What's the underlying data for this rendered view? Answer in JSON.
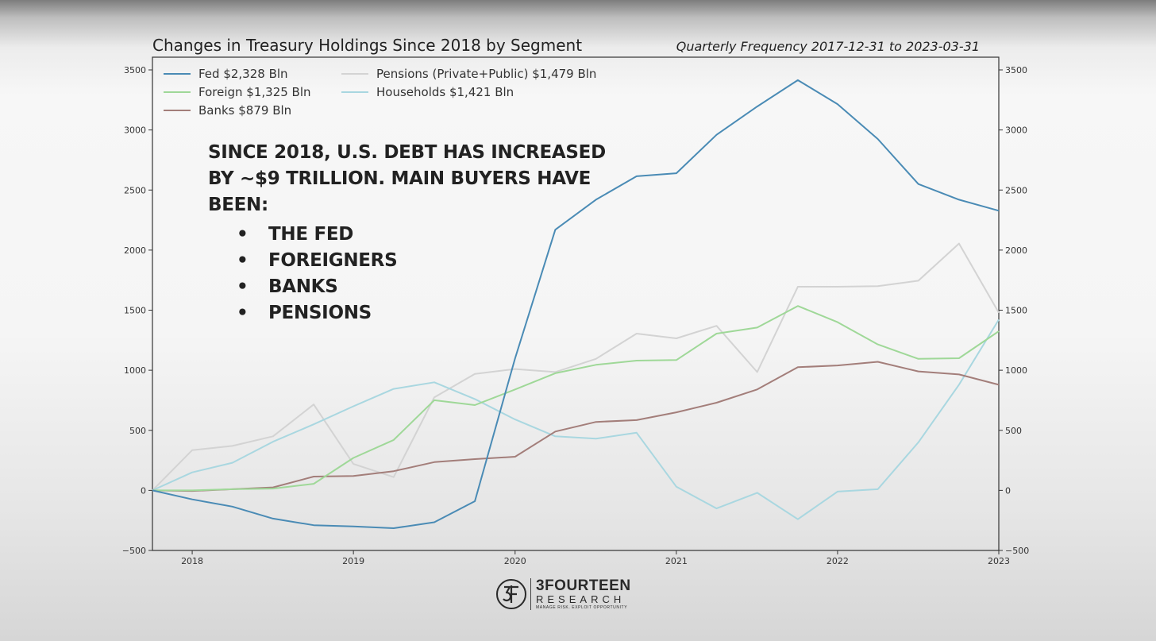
{
  "header": {
    "title": "Changes in Treasury Holdings Since 2018 by Segment",
    "subtitle": "Quarterly Frequency 2017-12-31 to 2023-03-31"
  },
  "callout": {
    "headline": "SINCE 2018, U.S. DEBT HAS INCREASED BY ~$9 TRILLION. MAIN BUYERS HAVE BEEN:",
    "bullets": [
      "THE FED",
      "FOREIGNERS",
      "BANKS",
      "PENSIONS"
    ]
  },
  "logo": {
    "name": "3FOURTEEN",
    "sub": "RESEARCH",
    "tagline": "MANAGE RISK. EXPLOIT OPPORTUNITY"
  },
  "chart_data": {
    "type": "line",
    "title": "Changes in Treasury Holdings Since 2018 by Segment",
    "subtitle": "Quarterly Frequency 2017-12-31 to 2023-03-31",
    "xlabel": "",
    "ylabel": "",
    "x": [
      "2017-12-31",
      "2018-03-31",
      "2018-06-30",
      "2018-09-30",
      "2018-12-31",
      "2019-03-31",
      "2019-06-30",
      "2019-09-30",
      "2019-12-31",
      "2020-03-31",
      "2020-06-30",
      "2020-09-30",
      "2020-12-31",
      "2021-03-31",
      "2021-06-30",
      "2021-09-30",
      "2021-12-31",
      "2022-03-31",
      "2022-06-30",
      "2022-09-30",
      "2022-12-31",
      "2023-03-31"
    ],
    "x_ticks": [
      "2018",
      "2019",
      "2020",
      "2021",
      "2022",
      "2023"
    ],
    "x_tick_dates": [
      "2018-03-31",
      "2019-03-31",
      "2020-03-31",
      "2021-03-31",
      "2022-03-31",
      "2023-03-31"
    ],
    "ylim": [
      -500,
      3500
    ],
    "y_ticks": [
      -500,
      0,
      500,
      1000,
      1500,
      2000,
      2500,
      3000,
      3500
    ],
    "y_tick_labels": [
      "−500",
      "0",
      "500",
      "1000",
      "1500",
      "2000",
      "2500",
      "3000",
      "3500"
    ],
    "grid": false,
    "legend_position": "top-left",
    "series": [
      {
        "name": "Fed $2,328 Bln",
        "color": "#4a8bb5",
        "values": [
          0,
          -75,
          -135,
          -235,
          -290,
          -300,
          -315,
          -265,
          -90,
          1100,
          2170,
          2420,
          2615,
          2640,
          2960,
          3195,
          3415,
          3215,
          2925,
          2550,
          2420,
          2328
        ]
      },
      {
        "name": "Foreign $1,325 Bln",
        "color": "#9fd898",
        "values": [
          0,
          0,
          10,
          15,
          55,
          270,
          420,
          750,
          710,
          840,
          975,
          1045,
          1080,
          1085,
          1305,
          1355,
          1535,
          1400,
          1215,
          1095,
          1100,
          1325
        ]
      },
      {
        "name": "Banks $879 Bln",
        "color": "#a37e7a",
        "values": [
          0,
          -5,
          10,
          25,
          115,
          120,
          160,
          235,
          260,
          280,
          490,
          570,
          585,
          650,
          730,
          840,
          1025,
          1040,
          1070,
          990,
          965,
          879
        ]
      },
      {
        "name": "Pensions (Private+Public) $1,479 Bln",
        "color": "#d3d3d3",
        "values": [
          0,
          335,
          370,
          450,
          715,
          220,
          110,
          775,
          970,
          1010,
          985,
          1095,
          1305,
          1265,
          1370,
          985,
          1695,
          1695,
          1700,
          1745,
          2055,
          1479
        ]
      },
      {
        "name": "Households $1,421 Bln",
        "color": "#a9d7e0",
        "values": [
          0,
          150,
          230,
          405,
          550,
          700,
          845,
          900,
          760,
          590,
          450,
          430,
          480,
          30,
          -150,
          -20,
          -240,
          -10,
          10,
          400,
          880,
          1421
        ]
      }
    ]
  }
}
